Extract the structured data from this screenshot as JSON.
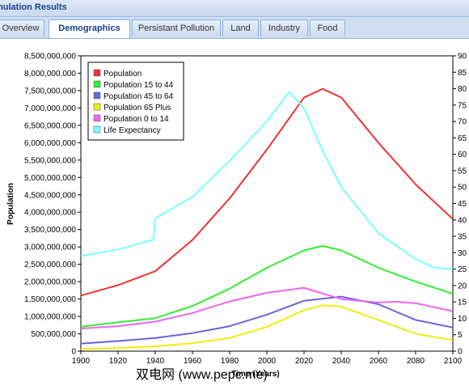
{
  "window": {
    "title": "mulation Results"
  },
  "tabs": [
    {
      "label": "Overview",
      "active": false
    },
    {
      "label": "Demographics",
      "active": true
    },
    {
      "label": "Persistant Pollution",
      "active": false
    },
    {
      "label": "Land",
      "active": false
    },
    {
      "label": "Industry",
      "active": false
    },
    {
      "label": "Food",
      "active": false
    }
  ],
  "watermark": "双电网 (www.pepc.me)",
  "chart_data": {
    "type": "line",
    "title": "",
    "xlabel": "Time (Years)",
    "ylabel": "Population",
    "y2label": "",
    "xlim": [
      1900,
      2100
    ],
    "ylim": [
      0,
      8500000000
    ],
    "y2lim": [
      0,
      90
    ],
    "grid": false,
    "legend_position": "top-left",
    "x_ticks": [
      1900,
      1920,
      1940,
      1960,
      1980,
      2000,
      2020,
      2040,
      2060,
      2080,
      2100
    ],
    "y_ticks": [
      "0",
      "500,000,000",
      "1,000,000,000",
      "1,500,000,000",
      "2,000,000,000",
      "2,500,000,000",
      "3,000,000,000",
      "3,500,000,000",
      "4,000,000,000",
      "4,500,000,000",
      "5,000,000,000",
      "5,500,000,000",
      "6,000,000,000",
      "6,500,000,000",
      "7,000,000,000",
      "7,500,000,000",
      "8,000,000,000",
      "8,500,000,000"
    ],
    "y2_ticks": [
      "0",
      "5",
      "10",
      "15",
      "20",
      "25",
      "30",
      "35",
      "40",
      "45",
      "50",
      "55",
      "60",
      "65",
      "70",
      "75",
      "80",
      "85",
      "90"
    ],
    "series": [
      {
        "name": "Population",
        "color": "#ee3333",
        "axis": "left",
        "x": [
          1900,
          1920,
          1940,
          1960,
          1980,
          2000,
          2020,
          2030,
          2040,
          2060,
          2080,
          2100
        ],
        "y": [
          1600000000,
          1900000000,
          2300000000,
          3200000000,
          4400000000,
          5800000000,
          7300000000,
          7550000000,
          7300000000,
          6000000000,
          4800000000,
          3800000000
        ]
      },
      {
        "name": "Population 15 to 44",
        "color": "#33ee33",
        "axis": "left",
        "x": [
          1900,
          1920,
          1940,
          1960,
          1980,
          2000,
          2020,
          2030,
          2040,
          2060,
          2080,
          2100
        ],
        "y": [
          700000000,
          830000000,
          950000000,
          1300000000,
          1800000000,
          2400000000,
          2900000000,
          3030000000,
          2900000000,
          2400000000,
          2000000000,
          1650000000
        ]
      },
      {
        "name": "Population 45 to 64",
        "color": "#6666dd",
        "axis": "left",
        "x": [
          1900,
          1920,
          1940,
          1960,
          1980,
          2000,
          2020,
          2040,
          2060,
          2080,
          2100
        ],
        "y": [
          220000000,
          290000000,
          380000000,
          520000000,
          720000000,
          1050000000,
          1450000000,
          1570000000,
          1350000000,
          900000000,
          680000000
        ]
      },
      {
        "name": "Population 65 Plus",
        "color": "#eeee11",
        "axis": "left",
        "x": [
          1900,
          1920,
          1940,
          1960,
          1980,
          2000,
          2020,
          2030,
          2040,
          2060,
          2080,
          2100
        ],
        "y": [
          60000000,
          90000000,
          140000000,
          230000000,
          380000000,
          700000000,
          1180000000,
          1320000000,
          1280000000,
          900000000,
          500000000,
          320000000
        ]
      },
      {
        "name": "Population 0 to 14",
        "color": "#ee66ee",
        "axis": "left",
        "x": [
          1900,
          1920,
          1940,
          1960,
          1980,
          2000,
          2020,
          2040,
          2060,
          2070,
          2080,
          2100
        ],
        "y": [
          650000000,
          720000000,
          850000000,
          1100000000,
          1430000000,
          1680000000,
          1820000000,
          1500000000,
          1400000000,
          1420000000,
          1380000000,
          1150000000
        ]
      },
      {
        "name": "Life Expectancy",
        "color": "#77ffff",
        "axis": "right",
        "x": [
          1900,
          1920,
          1939,
          1940,
          1960,
          1980,
          2000,
          2012,
          2020,
          2030,
          2040,
          2060,
          2080,
          2090,
          2100
        ],
        "y": [
          29,
          31,
          34,
          40.5,
          47,
          58,
          70,
          79,
          74,
          61,
          50,
          36,
          28,
          25.5,
          25
        ]
      }
    ]
  }
}
